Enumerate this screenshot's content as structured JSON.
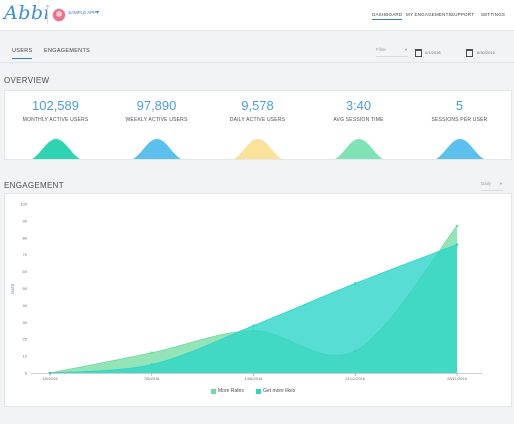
{
  "header": {
    "logo": "Abbi",
    "user_name": "SAMPLE APP",
    "nav": [
      "DASHBOARD",
      "MY ENGAGEMENTS",
      "SUPPORT",
      "SETTINGS"
    ],
    "active_nav": "DASHBOARD"
  },
  "subnav": {
    "tabs": [
      "USERS",
      "ENGAGEMENTS"
    ],
    "active_tab": "USERS",
    "filter_placeholder": "Filter",
    "date_from": "6/1/2016",
    "date_to": "6/30/2016"
  },
  "overview": {
    "title": "OVERVIEW",
    "metrics": [
      {
        "value": "102,589",
        "label": "MONTHLY ACTIVE USERS",
        "color": "#2ed3b2"
      },
      {
        "value": "97,890",
        "label": "WEEKLY ACTIVE USERS",
        "color": "#5bc0eb"
      },
      {
        "value": "9,578",
        "label": "DAILY ACTIVE USERS",
        "color": "#fbe29b"
      },
      {
        "value": "3:40",
        "label": "AVG SESSION TIME",
        "color": "#7fe3b6"
      },
      {
        "value": "5",
        "label": "SESSIONS PER USER",
        "color": "#5bc0eb"
      }
    ]
  },
  "engagement": {
    "title": "ENGAGEMENT",
    "period_select": "Daily"
  },
  "chart_data": {
    "type": "area",
    "title": "",
    "xlabel": "",
    "ylabel": "RATE",
    "x": [
      "1/6/2016",
      "7/6/2016",
      "14/6/2016",
      "21/11/2016",
      "28/11/2016"
    ],
    "x_ticks": [
      0,
      100,
      200,
      300,
      400
    ],
    "ylim": [
      0,
      100
    ],
    "y_ticks": [
      0,
      10,
      20,
      30,
      40,
      50,
      60,
      70,
      80,
      90,
      100
    ],
    "grid": false,
    "legend_position": "bottom",
    "series": [
      {
        "name": "More Rates",
        "color": "#6fdb9e",
        "points": [
          [
            0,
            0
          ],
          [
            100,
            12
          ],
          [
            200,
            25
          ],
          [
            300,
            13
          ],
          [
            400,
            87
          ]
        ]
      },
      {
        "name": "Get more likes",
        "color": "#2dd4c8",
        "points": [
          [
            0,
            0
          ],
          [
            100,
            5
          ],
          [
            200,
            28
          ],
          [
            300,
            53
          ],
          [
            400,
            76
          ]
        ]
      }
    ]
  }
}
